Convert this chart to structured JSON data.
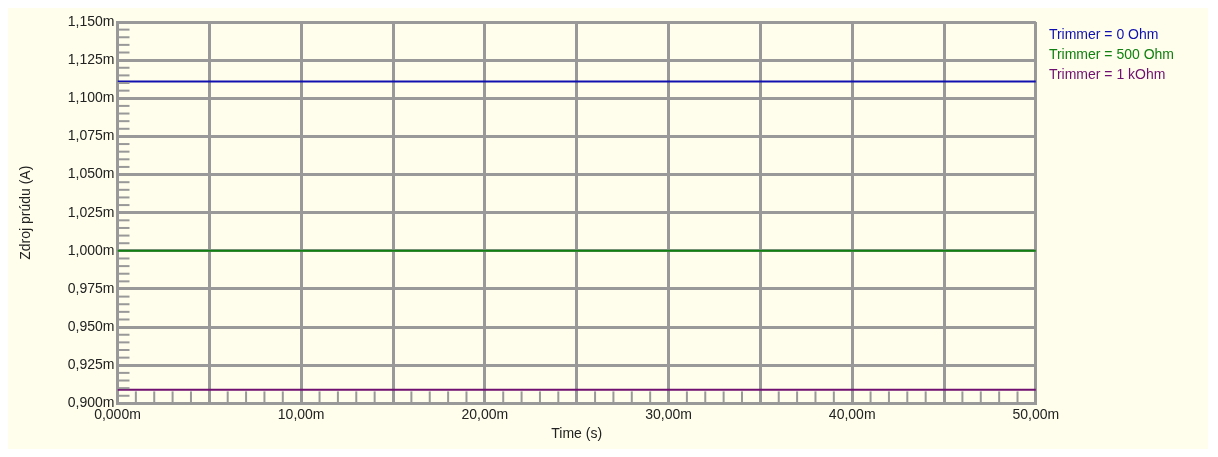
{
  "chart_data": {
    "type": "line",
    "xlabel": "Time (s)",
    "ylabel": "Zdroj prúdu (A)",
    "x": [
      0,
      50
    ],
    "series": [
      {
        "name": "Trimmer = 0 Ohm",
        "color": "#1010b0",
        "values": [
          1.111,
          1.111
        ]
      },
      {
        "name": "Trimmer = 500 Ohm",
        "color": "#108010",
        "values": [
          1.0,
          1.0
        ]
      },
      {
        "name": "Trimmer = 1 kOhm",
        "color": "#701070",
        "values": [
          0.909,
          0.909
        ]
      }
    ],
    "xlim": [
      0,
      50
    ],
    "xticks": [
      {
        "value": 0,
        "label": "0,000m"
      },
      {
        "value": 5,
        "label": null
      },
      {
        "value": 10,
        "label": "10,00m"
      },
      {
        "value": 15,
        "label": null
      },
      {
        "value": 20,
        "label": "20,00m"
      },
      {
        "value": 25,
        "label": null
      },
      {
        "value": 30,
        "label": "30,00m"
      },
      {
        "value": 35,
        "label": null
      },
      {
        "value": 40,
        "label": "40,00m"
      },
      {
        "value": 45,
        "label": null
      },
      {
        "value": 50,
        "label": "50,00m"
      }
    ],
    "ylim": [
      0.9,
      1.15
    ],
    "yticks": [
      {
        "value": 0.9,
        "label": "0,900m"
      },
      {
        "value": 0.925,
        "label": "0,925m"
      },
      {
        "value": 0.95,
        "label": "0,950m"
      },
      {
        "value": 0.975,
        "label": "0,975m"
      },
      {
        "value": 1.0,
        "label": "1,000m"
      },
      {
        "value": 1.025,
        "label": "1,025m"
      },
      {
        "value": 1.05,
        "label": "1,050m"
      },
      {
        "value": 1.075,
        "label": "1,075m"
      },
      {
        "value": 1.1,
        "label": "1,100m"
      },
      {
        "value": 1.125,
        "label": "1,125m"
      },
      {
        "value": 1.15,
        "label": "1,150m"
      }
    ],
    "grid": true,
    "legend": "right",
    "marker": "none",
    "line_style": "solid"
  }
}
